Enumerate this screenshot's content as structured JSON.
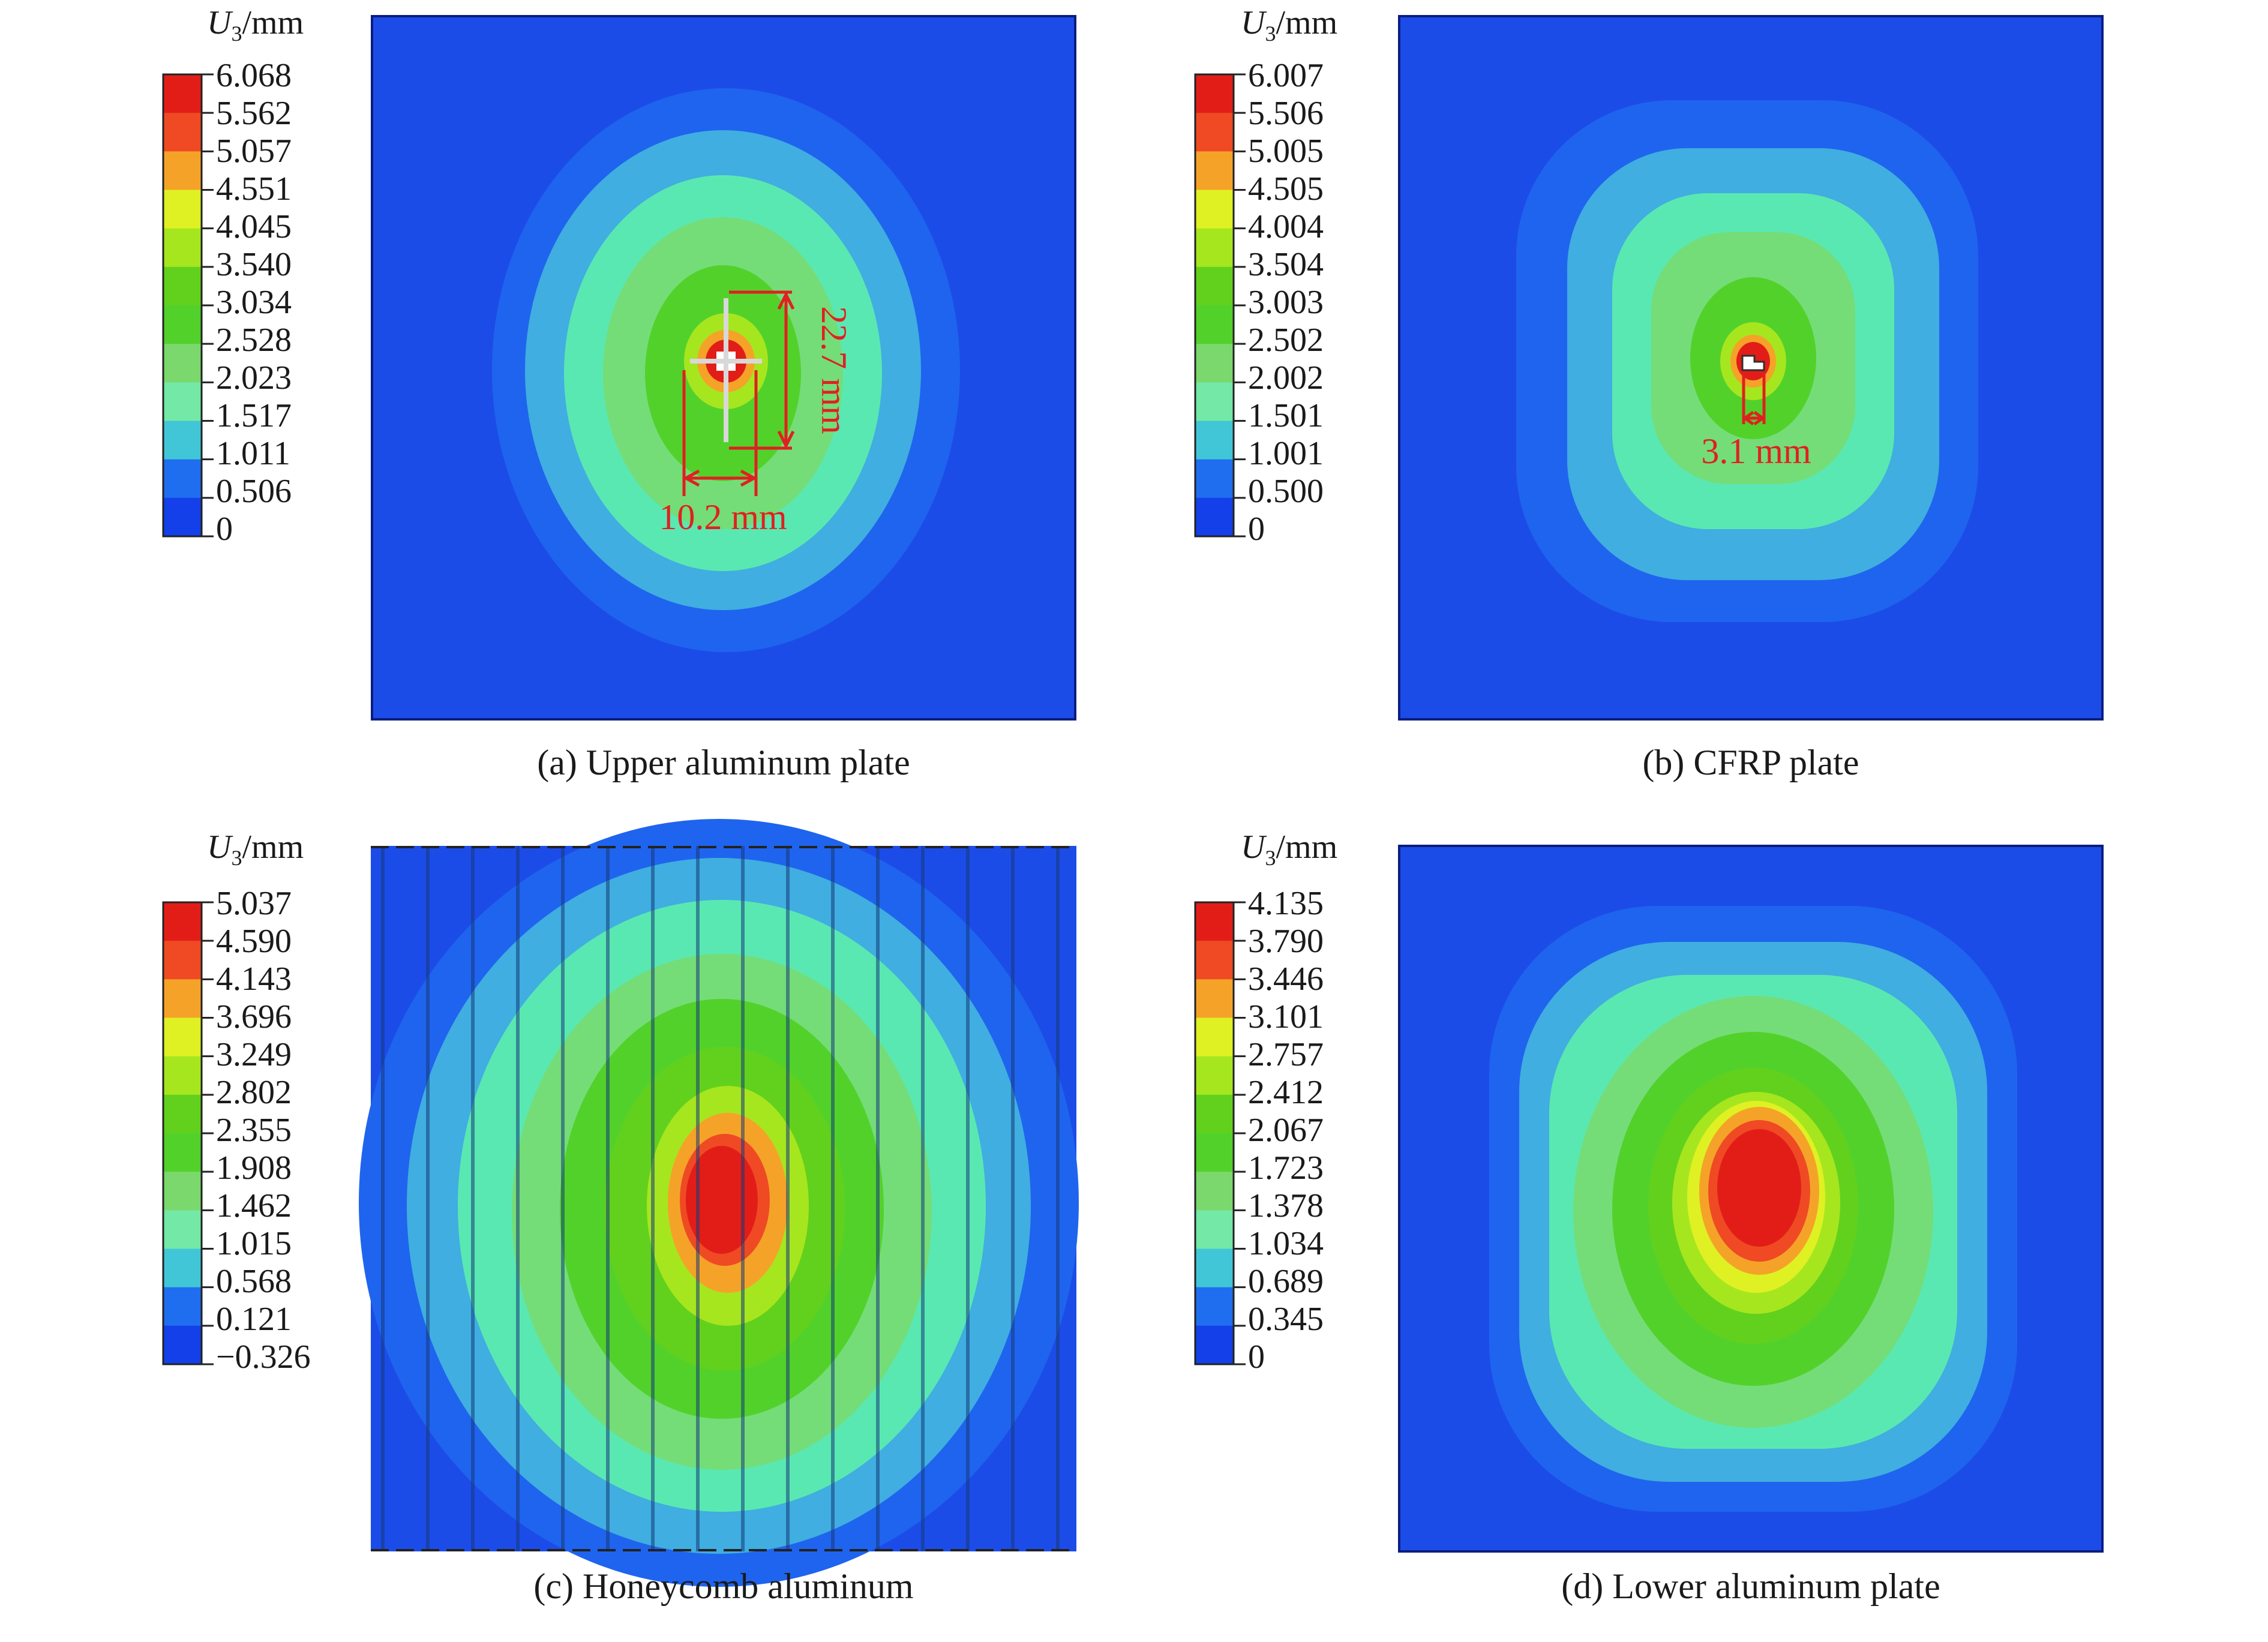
{
  "unit_label": {
    "symbol": "U",
    "subscript": "3",
    "unit": "/mm"
  },
  "colors": {
    "scale": [
      "#1d2fce",
      "#1340e8",
      "#1f6ef0",
      "#40c6d6",
      "#74e8a6",
      "#7ad86c",
      "#52d12b",
      "#62d11d",
      "#a6e61f",
      "#dff123",
      "#f5a328",
      "#ef4a24",
      "#e21d18"
    ],
    "background_plate": "#1c4ce8",
    "annotation": "#e02020"
  },
  "panels": [
    {
      "caption": "(a) Upper aluminum plate",
      "legend": [
        "6.068",
        "5.562",
        "5.057",
        "4.551",
        "4.045",
        "3.540",
        "3.034",
        "2.528",
        "2.023",
        "1.517",
        "1.011",
        "0.506",
        "0"
      ],
      "annotations": {
        "length": "22.7 mm",
        "width": "10.2 mm"
      }
    },
    {
      "caption": "(b) CFRP plate",
      "legend": [
        "6.007",
        "5.506",
        "5.005",
        "4.505",
        "4.004",
        "3.504",
        "3.003",
        "2.502",
        "2.002",
        "1.501",
        "1.001",
        "0.500",
        "0"
      ],
      "annotations": {
        "width": "3.1 mm"
      }
    },
    {
      "caption": "(c) Honeycomb aluminum",
      "legend": [
        "5.037",
        "4.590",
        "4.143",
        "3.696",
        "3.249",
        "2.802",
        "2.355",
        "1.908",
        "1.462",
        "1.015",
        "0.568",
        "0.121",
        "−0.326"
      ]
    },
    {
      "caption": "(d) Lower aluminum plate",
      "legend": [
        "4.135",
        "3.790",
        "3.446",
        "3.101",
        "2.757",
        "2.412",
        "2.067",
        "1.723",
        "1.378",
        "1.034",
        "0.689",
        "0.345",
        "0"
      ]
    }
  ]
}
